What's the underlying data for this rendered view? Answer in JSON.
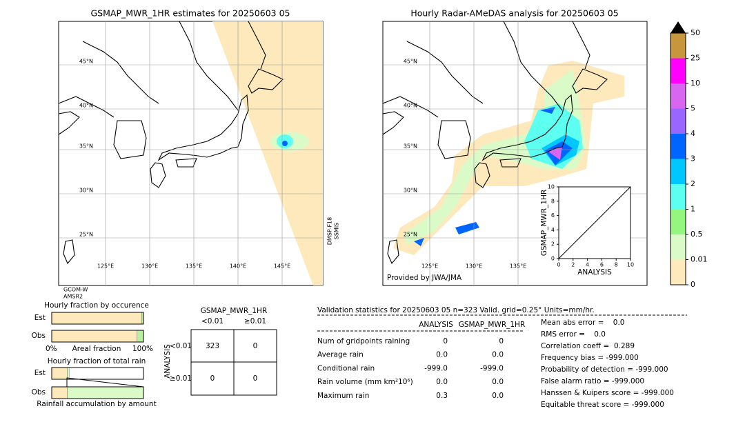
{
  "left_map": {
    "title": "GSMAP_MWR_1HR estimates for 20250603 05",
    "lat_labels": [
      "45°N",
      "40°N",
      "35°N",
      "30°N",
      "25°N"
    ],
    "lon_labels": [
      "125°E",
      "130°E",
      "135°E",
      "140°E",
      "145°E"
    ],
    "side_label": [
      "DMSP-F18",
      "SSMIS"
    ],
    "bottom_label": [
      "GCOM-W",
      "AMSR2"
    ]
  },
  "right_map": {
    "title": "Hourly Radar-AMeDAS analysis for 20250603 05",
    "lat_labels": [
      "45°N",
      "40°N",
      "35°N",
      "30°N",
      "25°N"
    ],
    "lon_labels": [
      "125°E",
      "130°E",
      "135°E"
    ],
    "credit": "Provided by JWA/JMA"
  },
  "inset": {
    "ylabel": "GSMAP_MWR_1HR",
    "xlabel": "ANALYSIS",
    "xlim": [
      0,
      10
    ],
    "ylim": [
      0,
      10
    ],
    "xticks": [
      0,
      2,
      4,
      6,
      8,
      10
    ],
    "yticks": [
      0,
      2,
      4,
      6,
      8,
      10
    ]
  },
  "colorbar": {
    "levels": [
      0,
      0.01,
      0.5,
      1,
      2,
      3,
      4,
      5,
      10,
      25,
      50
    ],
    "colors": [
      "#fde9bb",
      "#dafbc8",
      "#94f57f",
      "#5cfff0",
      "#00c8ff",
      "#0064ff",
      "#9966ff",
      "#d966f0",
      "#ff00ff",
      "#c8963c"
    ],
    "extend_color": "#000000"
  },
  "occurrence": {
    "title": "Hourly fraction by occurence",
    "rows": [
      "Est",
      "Obs"
    ],
    "est": [
      98,
      2
    ],
    "obs": [
      93,
      7
    ],
    "colors": [
      "#fde9bb",
      "#b9f0a0"
    ],
    "xlabels": [
      "0%",
      "Areal fraction",
      "100%"
    ]
  },
  "total_rain": {
    "title": "Hourly fraction of total rain",
    "rows": [
      "Est",
      "Obs"
    ],
    "est": [
      17,
      2
    ],
    "obs": [
      17,
      83
    ],
    "colors": [
      "#fde9bb",
      "#dafbc8"
    ],
    "xlabel": "Rainfall accumulation by amount"
  },
  "contingency": {
    "title": "GSMAP_MWR_1HR",
    "col_headers": [
      "<0.01",
      "≥0.01"
    ],
    "row_axis": "ANALYSIS",
    "row_headers": [
      "<0.01",
      "≥0.01"
    ],
    "cells": [
      [
        "323",
        "0"
      ],
      [
        "0",
        "0"
      ]
    ]
  },
  "validation": {
    "header": "Validation statistics for 20250603 05  n=323 Valid. grid=0.25° Units=mm/hr.",
    "columns": [
      "ANALYSIS",
      "GSMAP_MWR_1HR"
    ],
    "rows": [
      [
        "Num of gridpoints raining",
        "0",
        "0"
      ],
      [
        "Average rain",
        "0.0",
        "0.0"
      ],
      [
        "Conditional rain",
        "-999.0",
        "-999.0"
      ],
      [
        "Rain volume (mm km²10⁶)",
        "0.0",
        "0.0"
      ],
      [
        "Maximum rain",
        "0.3",
        "0.0"
      ]
    ],
    "scores": [
      "Mean abs error =    0.0",
      "RMS error =    0.0",
      "Correlation coeff =  0.289",
      "Frequency bias = -999.000",
      "Probability of detection = -999.000",
      "False alarm ratio = -999.000",
      "Hanssen & Kuipers score = -999.000",
      "Equitable threat score = -999.000"
    ]
  }
}
